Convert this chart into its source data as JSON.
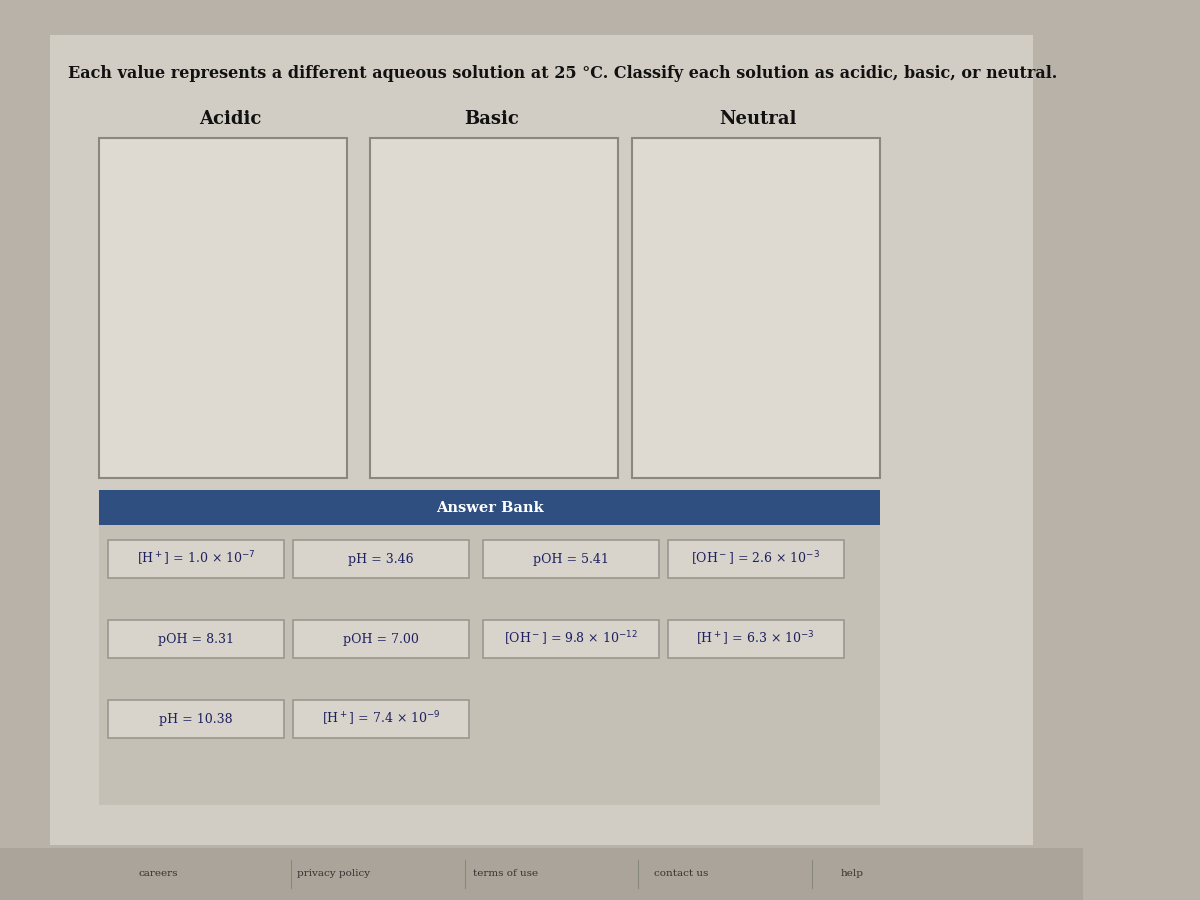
{
  "title": "Each value represents a different aqueous solution at 25 °C. Classify each solution as acidic, basic, or neutral.",
  "columns": [
    "Acidic",
    "Basic",
    "Neutral"
  ],
  "outer_bg": "#b8b2a8",
  "main_bg": "#cdc8be",
  "content_bg": "#d2cdc4",
  "drop_zone_bg": "#dedad2",
  "drop_zone_border": "#888880",
  "answer_bank_header_bg": "#2e4f80",
  "answer_bank_header_text": "#ffffff",
  "answer_bank_bg": "#c5c0b6",
  "answer_bank_header": "Answer Bank",
  "item_bg": "#d8d4cc",
  "item_border": "#999990",
  "item_text_color": "#1e2060",
  "items": [
    {
      "text": "[H$^+$] = 1.0 × 10$^{-7}$",
      "row": 0,
      "col": 0
    },
    {
      "text": "pH = 3.46",
      "row": 0,
      "col": 1
    },
    {
      "text": "pOH = 5.41",
      "row": 0,
      "col": 2
    },
    {
      "text": "[OH$^-$] = 2.6 × 10$^{-3}$",
      "row": 0,
      "col": 3
    },
    {
      "text": "pOH = 8.31",
      "row": 1,
      "col": 0
    },
    {
      "text": "pOH = 7.00",
      "row": 1,
      "col": 1
    },
    {
      "text": "[OH$^-$] = 9.8 × 10$^{-12}$",
      "row": 1,
      "col": 2
    },
    {
      "text": "[H$^+$] = 6.3 × 10$^{-3}$",
      "row": 1,
      "col": 3
    },
    {
      "text": "pH = 10.38",
      "row": 2,
      "col": 0
    },
    {
      "text": "[H$^+$] = 7.4 × 10$^{-9}$",
      "row": 2,
      "col": 1
    }
  ],
  "footer_items": [
    "careers",
    "privacy policy",
    "terms of use",
    "contact us",
    "help"
  ],
  "footer_bg": "#aaa49a",
  "title_fontsize": 11.5,
  "col_header_fontsize": 13,
  "item_fontsize": 9,
  "answer_bank_fontsize": 10.5
}
